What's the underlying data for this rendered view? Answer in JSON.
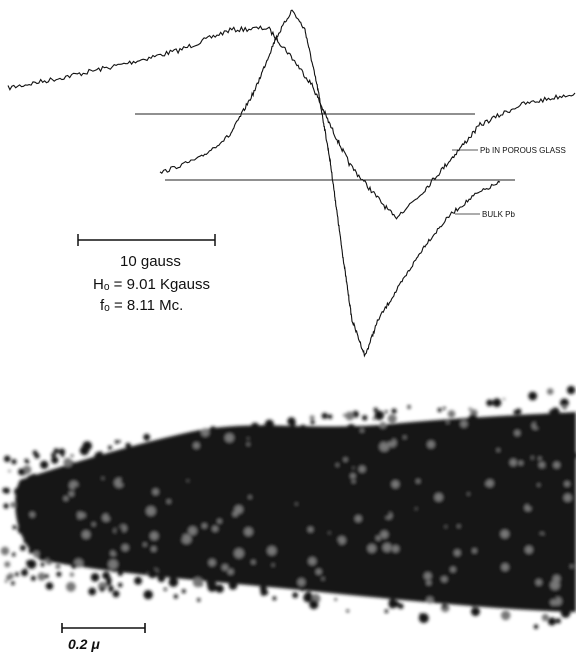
{
  "figure": {
    "upper": {
      "trace_labels": [
        "Pb IN POROUS GLASS",
        "BULK Pb"
      ],
      "scale_label": "10 gauss",
      "field": "Hₒ = 9.01 Kgauss",
      "frequency": "fₒ = 8.11 Mc."
    },
    "lower": {
      "scale_label": "0.2 μ"
    }
  }
}
